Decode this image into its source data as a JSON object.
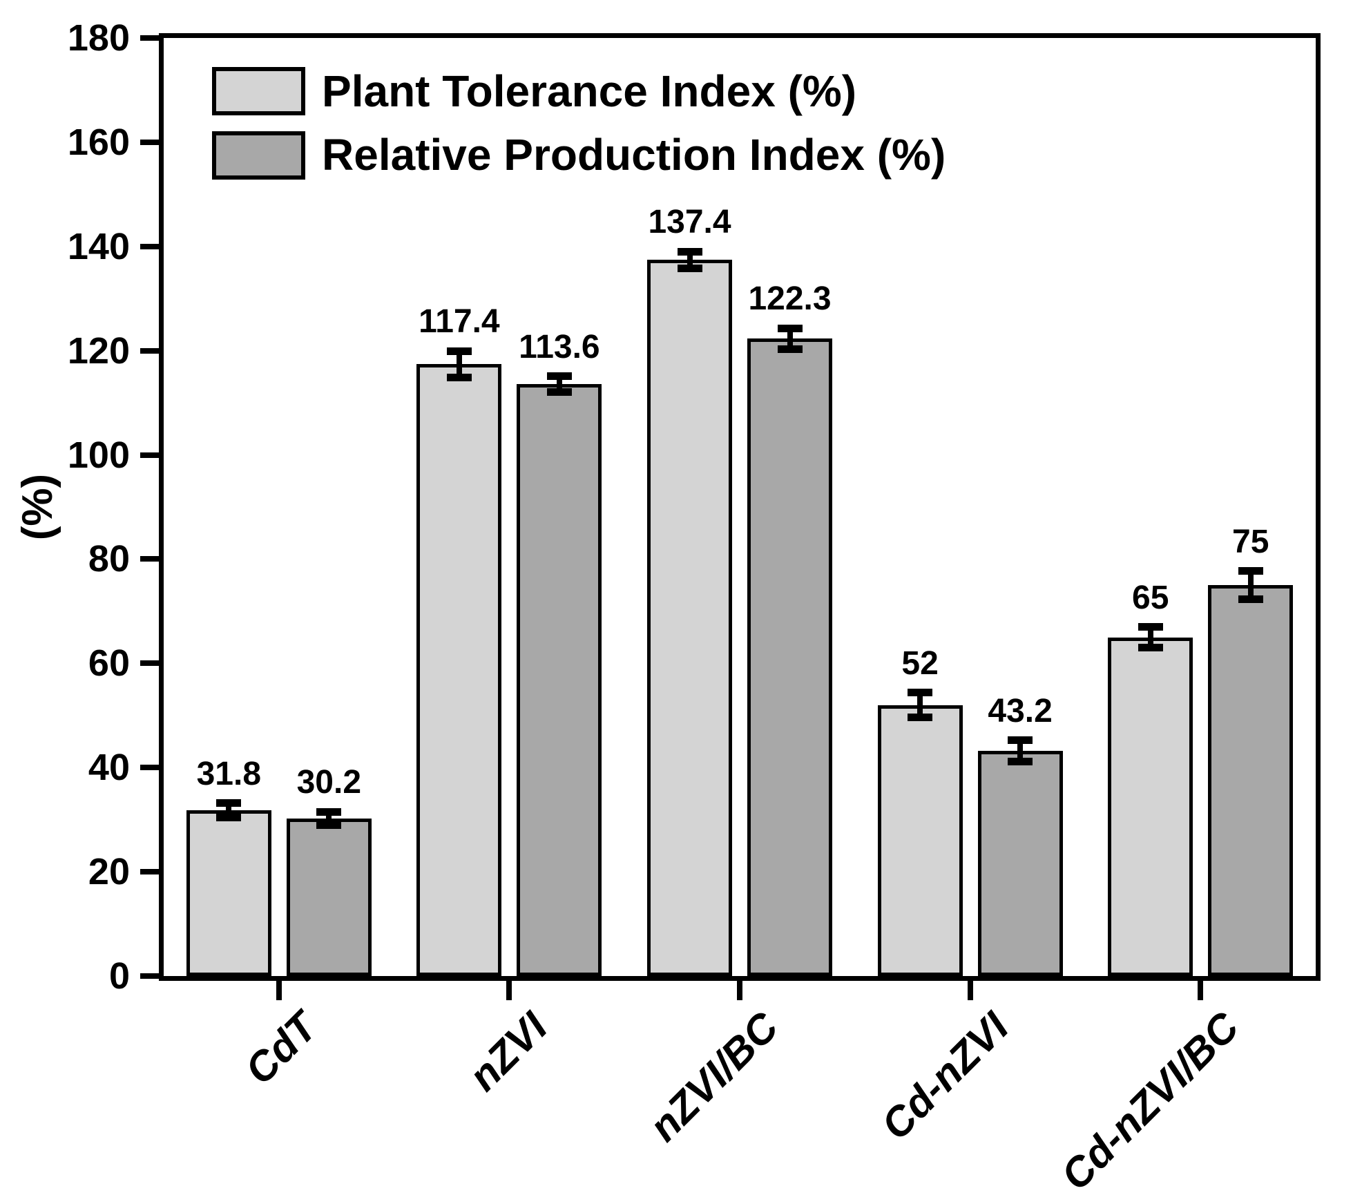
{
  "chart_data": {
    "type": "bar",
    "title": "",
    "categories": [
      "CdT",
      "nZVI",
      "nZVI/BC",
      "Cd-nZVI",
      "Cd-nZVI/BC"
    ],
    "series": [
      {
        "name": "Plant Tolerance Index (%)",
        "color": "#d4d4d4",
        "values": [
          31.8,
          117.4,
          137.4,
          52,
          65
        ],
        "errors": [
          1.4,
          2.5,
          1.6,
          2.4,
          2.0
        ],
        "value_labels": [
          "31.8",
          "117.4",
          "137.4",
          "52",
          "65"
        ]
      },
      {
        "name": "Relative Production Index (%)",
        "color": "#a8a8a8",
        "values": [
          30.2,
          113.6,
          122.3,
          43.2,
          75
        ],
        "errors": [
          1.3,
          1.5,
          2.0,
          2.0,
          2.7
        ],
        "value_labels": [
          "30.2",
          "113.6",
          "122.3",
          "43.2",
          "75"
        ]
      }
    ],
    "ylabel": "(%)",
    "ylim": [
      0,
      180
    ],
    "ytick_step": 20,
    "yticks": [
      "0",
      "20",
      "40",
      "60",
      "80",
      "100",
      "120",
      "140",
      "160",
      "180"
    ],
    "legend_position": "upper-left",
    "grid": false,
    "frame": "full-box",
    "background_color": "#ffffff",
    "axis_color": "#000000",
    "bar_edge_color": "#000000",
    "errorbar_color": "#000000"
  }
}
